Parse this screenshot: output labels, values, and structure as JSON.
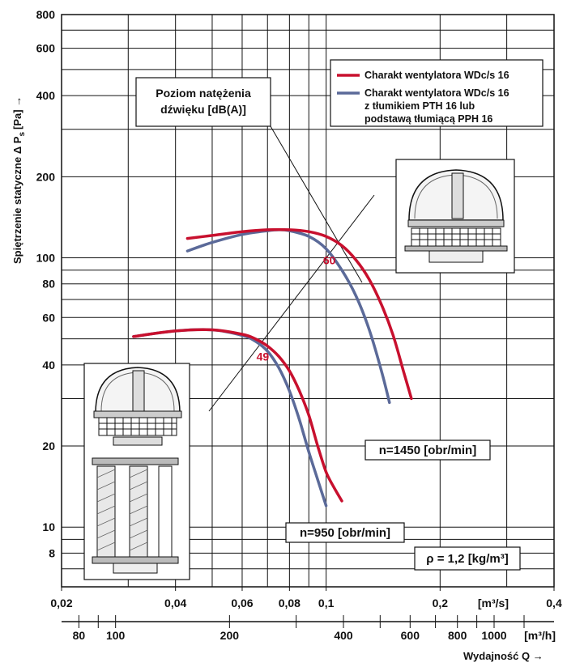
{
  "chart_data": {
    "type": "line",
    "x_scale": "log",
    "y_scale": "log",
    "xlim": [
      0.02,
      0.4
    ],
    "ylim": [
      6,
      800
    ],
    "grid": true,
    "ylabel_main": "Spiętrzenie statyczne Δ P",
    "ylabel_sub": "s",
    "ylabel_unit": "[Pa] →",
    "xlabel": "Wydajność Q →",
    "x_ticks_m3s": [
      "0,02",
      "0,04",
      "0,06",
      "0,08",
      "0,1",
      "0,2",
      "0,4"
    ],
    "x_ticks_m3s_values": [
      0.02,
      0.04,
      0.06,
      0.08,
      0.1,
      0.2,
      0.4
    ],
    "x_unit_m3s": "[m³/s]",
    "x_ticks_m3h": [
      "80",
      "100",
      "200",
      "400",
      "600",
      "800",
      "1000"
    ],
    "x_ticks_m3h_values": [
      80,
      100,
      200,
      400,
      600,
      800,
      1000
    ],
    "x_unit_m3h": "[m³/h]",
    "y_ticks": [
      "8",
      "10",
      "20",
      "40",
      "60",
      "80",
      "100",
      "200",
      "400",
      "600",
      "800"
    ],
    "y_ticks_values": [
      8,
      10,
      20,
      40,
      60,
      80,
      100,
      200,
      400,
      600,
      800
    ],
    "series": [
      {
        "name": "Charakt wentylatora WDc/s 16",
        "color": "#c8102e",
        "curves": [
          {
            "x": [
              0.043,
              0.05,
              0.06,
              0.07,
              0.08,
              0.09,
              0.1,
              0.11,
              0.12,
              0.13,
              0.14,
              0.15,
              0.16,
              0.168
            ],
            "y": [
              118,
              121,
              125,
              127,
              127,
              125,
              120,
              111,
              98,
              83,
              67,
              52,
              38,
              30
            ]
          },
          {
            "x": [
              0.031,
              0.04,
              0.05,
              0.06,
              0.065,
              0.07,
              0.075,
              0.08,
              0.085,
              0.09,
              0.095,
              0.1,
              0.105,
              0.11
            ],
            "y": [
              51,
              53.5,
              54,
              52,
              50,
              47,
              43,
              38,
              32,
              26,
              20,
              16,
              14,
              12.5
            ]
          }
        ]
      },
      {
        "name": "Charakt wentylatora WDc/s 16 z tłumikiem PTH 16 lub podstawą tłumiącą PPH 16",
        "color": "#5b6a99",
        "curves": [
          {
            "x": [
              0.043,
              0.05,
              0.06,
              0.07,
              0.075,
              0.08,
              0.09,
              0.1,
              0.11,
              0.12,
              0.13,
              0.14,
              0.147
            ],
            "y": [
              106,
              114,
              122,
              126,
              127,
              126,
              120,
              108,
              90,
              72,
              54,
              38,
              29
            ]
          },
          {
            "x": [
              0.031,
              0.04,
              0.05,
              0.06,
              0.065,
              0.07,
              0.075,
              0.08,
              0.085,
              0.09,
              0.095,
              0.1
            ],
            "y": [
              51,
              53.5,
              54,
              51.5,
              49,
              45,
              39,
              32,
              25,
              19,
              15,
              12
            ]
          }
        ]
      }
    ],
    "sound_lines": [
      {
        "label": "49",
        "color": "#c8102e",
        "at": {
          "x": 0.068,
          "y": 43
        }
      },
      {
        "label": "60",
        "color": "#c8102e",
        "at": {
          "x": 0.102,
          "y": 98
        }
      }
    ],
    "annotations": {
      "sound_level_title_1": "Poziom natężenia",
      "sound_level_title_2": "dźwięku [dB(A)]",
      "legend_line1": "Charakt wentylatora WDc/s 16",
      "legend_line2a": "Charakt wentylatora WDc/s 16",
      "legend_line2b": "z tłumikiem PTH 16 lub",
      "legend_line2c": "podstawą tłumiącą PPH 16",
      "speed_1450": "n=1450 [obr/min]",
      "speed_950": "n=950 [obr/min]",
      "density": "ρ = 1,2 [kg/m³]"
    }
  }
}
